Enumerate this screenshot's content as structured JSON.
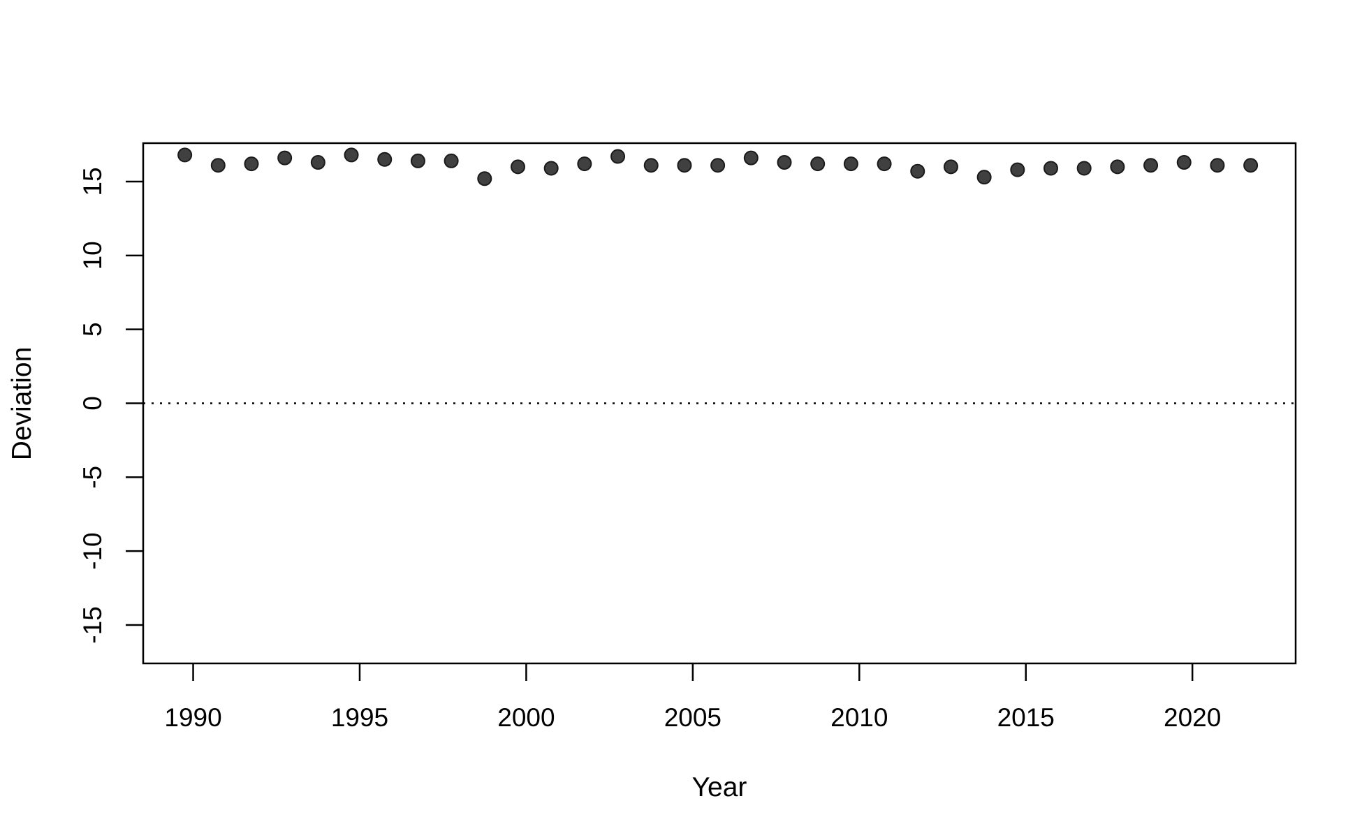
{
  "chart_data": {
    "type": "scatter",
    "title": "",
    "xlabel": "Year",
    "ylabel": "Deviation",
    "xlim": [
      1988.5,
      2023.1
    ],
    "ylim": [
      -17.6,
      17.6
    ],
    "xticks": [
      1990,
      1995,
      2000,
      2005,
      2010,
      2015,
      2020
    ],
    "yticks": [
      -15,
      -10,
      -5,
      0,
      5,
      10,
      15
    ],
    "grid": false,
    "reference_line": {
      "y": 0,
      "style": "dotted"
    },
    "marker_color": "#404040",
    "series": [
      {
        "x": [
          1989.75,
          1990.75,
          1991.75,
          1992.75,
          1993.75,
          1994.75,
          1995.75,
          1996.75,
          1997.75,
          1998.75,
          1999.75,
          2000.75,
          2001.75,
          2002.75,
          2003.75,
          2004.75,
          2005.75,
          2006.75,
          2007.75,
          2008.75,
          2009.75,
          2010.75,
          2011.75,
          2012.75,
          2013.75,
          2014.75,
          2015.75,
          2016.75,
          2017.75,
          2018.75,
          2019.75,
          2020.75,
          2021.75
        ],
        "y": [
          16.8,
          16.1,
          16.2,
          16.6,
          16.3,
          16.8,
          16.5,
          16.4,
          16.4,
          15.2,
          16.0,
          15.9,
          16.2,
          16.7,
          16.1,
          16.1,
          16.1,
          16.6,
          16.3,
          16.2,
          16.2,
          16.2,
          15.7,
          16.0,
          15.3,
          15.8,
          15.9,
          15.9,
          16.0,
          16.1,
          16.3,
          16.1,
          16.1
        ]
      }
    ]
  }
}
